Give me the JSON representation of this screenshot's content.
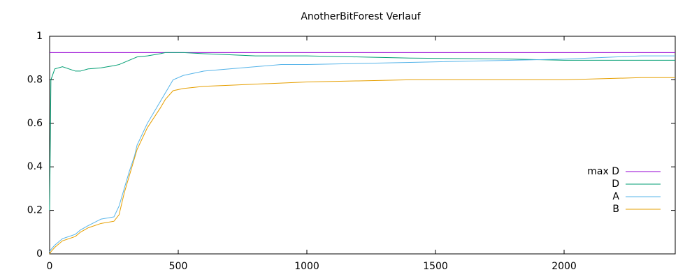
{
  "chart_data": {
    "type": "line",
    "title": "AnotherBitForest Verlauf",
    "x": [
      0,
      5,
      20,
      50,
      100,
      120,
      150,
      200,
      250,
      270,
      290,
      310,
      330,
      340,
      380,
      430,
      450,
      480,
      520,
      600,
      700,
      800,
      900,
      1000,
      1200,
      1400,
      1800,
      2000,
      2300,
      2432
    ],
    "series": [
      {
        "name": "max D",
        "color": "#9400d3",
        "values": [
          0.925,
          0.925,
          0.925,
          0.925,
          0.925,
          0.925,
          0.925,
          0.925,
          0.925,
          0.925,
          0.925,
          0.925,
          0.925,
          0.925,
          0.925,
          0.925,
          0.925,
          0.925,
          0.925,
          0.925,
          0.925,
          0.925,
          0.925,
          0.925,
          0.925,
          0.925,
          0.925,
          0.925,
          0.925,
          0.925
        ]
      },
      {
        "name": "D",
        "color": "#009e73",
        "values": [
          0.2,
          0.8,
          0.85,
          0.86,
          0.84,
          0.84,
          0.85,
          0.855,
          0.865,
          0.87,
          0.88,
          0.89,
          0.9,
          0.905,
          0.91,
          0.92,
          0.925,
          0.925,
          0.925,
          0.92,
          0.915,
          0.91,
          0.91,
          0.91,
          0.905,
          0.9,
          0.895,
          0.89,
          0.89,
          0.89
        ]
      },
      {
        "name": "A",
        "color": "#56b4e9",
        "values": [
          0.01,
          0.02,
          0.04,
          0.07,
          0.09,
          0.11,
          0.13,
          0.16,
          0.17,
          0.22,
          0.3,
          0.38,
          0.45,
          0.5,
          0.6,
          0.7,
          0.74,
          0.8,
          0.82,
          0.84,
          0.85,
          0.86,
          0.87,
          0.87,
          0.875,
          0.88,
          0.89,
          0.895,
          0.91,
          0.91
        ]
      },
      {
        "name": "B",
        "color": "#e69f00",
        "values": [
          0,
          0.01,
          0.03,
          0.06,
          0.08,
          0.1,
          0.12,
          0.14,
          0.15,
          0.18,
          0.28,
          0.36,
          0.44,
          0.48,
          0.58,
          0.67,
          0.71,
          0.75,
          0.76,
          0.77,
          0.775,
          0.78,
          0.785,
          0.79,
          0.795,
          0.8,
          0.8,
          0.8,
          0.81,
          0.81
        ]
      }
    ],
    "xlim": [
      0,
      2432
    ],
    "xticks": [
      0,
      500,
      1000,
      1500,
      2000
    ],
    "ylim": [
      0,
      1
    ],
    "yticks": [
      0,
      0.2,
      0.4,
      0.6,
      0.8,
      1
    ],
    "legend": "bottom-right"
  }
}
